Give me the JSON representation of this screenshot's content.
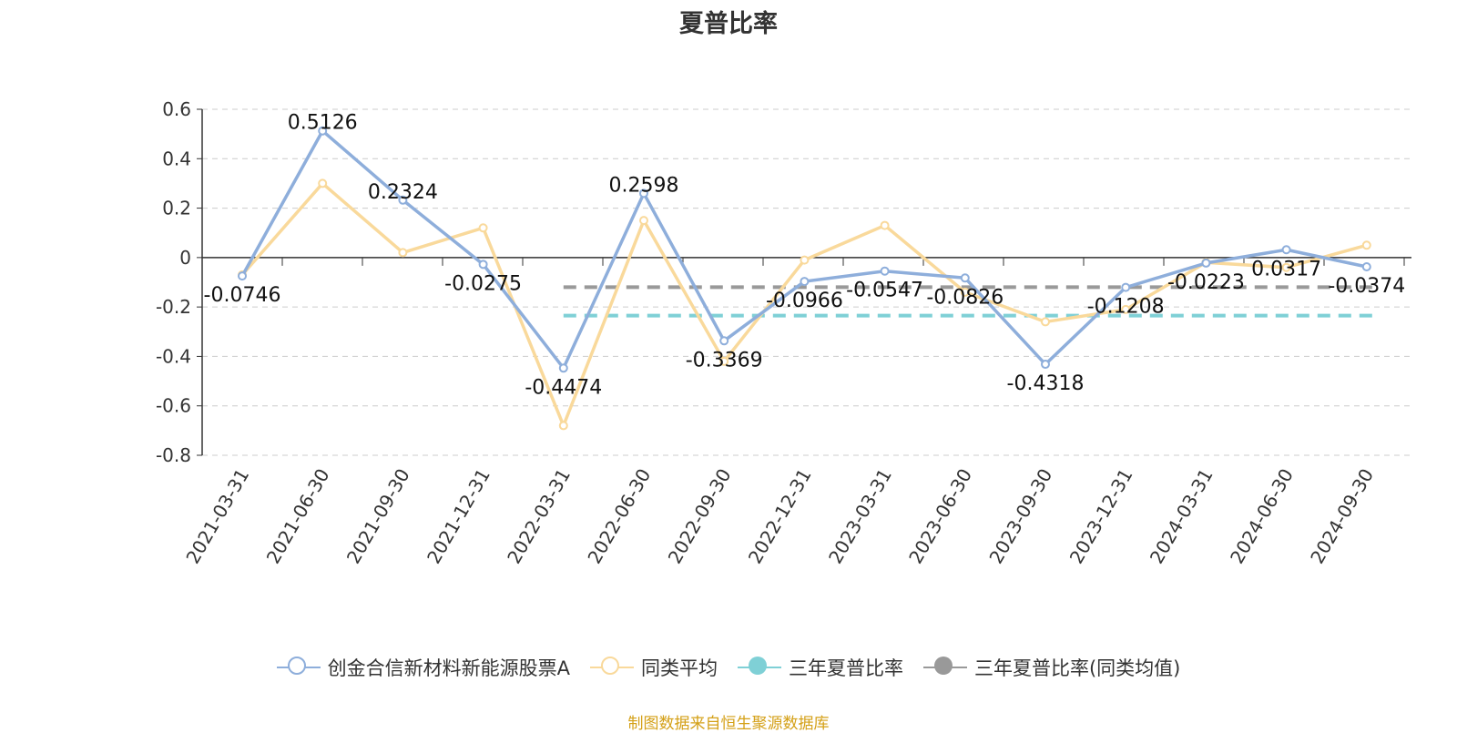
{
  "chart_data": {
    "type": "line",
    "title": "夏普比率",
    "categories": [
      "2021-03-31",
      "2021-06-30",
      "2021-09-30",
      "2021-12-31",
      "2022-03-31",
      "2022-06-30",
      "2022-09-30",
      "2022-12-31",
      "2023-03-31",
      "2023-06-30",
      "2023-09-30",
      "2023-12-31",
      "2024-03-31",
      "2024-06-30",
      "2024-09-30"
    ],
    "ylim": [
      -0.8,
      0.6
    ],
    "yticks": [
      "0.6",
      "0.4",
      "0.2",
      "0",
      "-0.2",
      "-0.4",
      "-0.6",
      "-0.8"
    ],
    "ytick_values": [
      0.6,
      0.4,
      0.2,
      0,
      -0.2,
      -0.4,
      -0.6,
      -0.8
    ],
    "grid": true,
    "legend_position": "bottom",
    "series": [
      {
        "name": "创金合信新材料新能源股票A",
        "color": "#8eaedb",
        "values": [
          -0.0746,
          0.5126,
          0.2324,
          -0.0275,
          -0.4474,
          0.2598,
          -0.3369,
          -0.0966,
          -0.0547,
          -0.0826,
          -0.4318,
          -0.1208,
          -0.0223,
          0.0317,
          -0.0374
        ],
        "labels": [
          "-0.0746",
          "0.5126",
          "0.2324",
          "-0.0275",
          "-0.4474",
          "0.2598",
          "-0.3369",
          "-0.0966",
          "-0.0547",
          "-0.0826",
          "-0.4318",
          "-0.1208",
          "-0.0223",
          "0.0317",
          "-0.0374"
        ]
      },
      {
        "name": "同类平均",
        "color": "#f9d99b",
        "values": [
          -0.07,
          0.3,
          0.02,
          0.12,
          -0.68,
          0.15,
          -0.42,
          -0.01,
          0.13,
          -0.14,
          -0.26,
          -0.21,
          -0.02,
          -0.04,
          0.05
        ]
      },
      {
        "name": "三年夏普比率",
        "color": "#7fd0d6",
        "type": "reference",
        "value": -0.235,
        "start_category": "2022-03-31"
      },
      {
        "name": "三年夏普比率(同类均值)",
        "color": "#999999",
        "type": "reference",
        "value": -0.12,
        "start_category": "2022-03-31"
      }
    ]
  },
  "source": "制图数据来自恒生聚源数据库"
}
